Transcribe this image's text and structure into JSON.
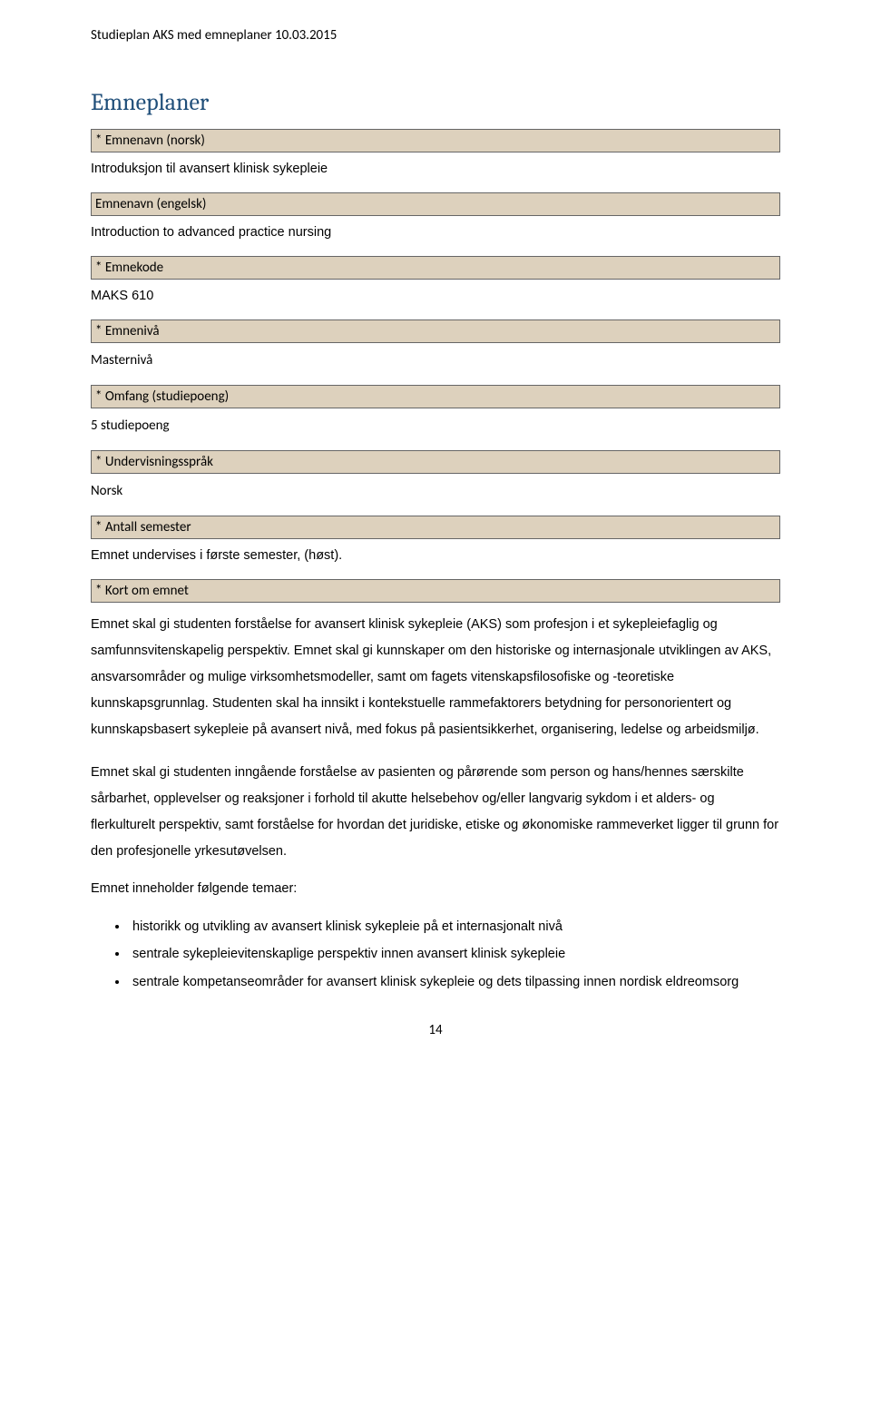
{
  "header": {
    "text": "Studieplan AKS med emneplaner 10.03.2015"
  },
  "title": {
    "text": "Emneplaner"
  },
  "fields": {
    "emnenavn_norsk": {
      "label": "* Emnenavn (norsk)",
      "value": "Introduksjon til avansert klinisk sykepleie"
    },
    "emnenavn_engelsk": {
      "label": "Emnenavn (engelsk)",
      "value": "Introduction to advanced practice nursing"
    },
    "emnekode": {
      "label": "* Emnekode",
      "value": "MAKS 610"
    },
    "emneniva": {
      "label": "* Emnenivå",
      "value": "Masternivå"
    },
    "omfang": {
      "label": "* Omfang (studiepoeng)",
      "value": "5 studiepoeng"
    },
    "undervisningssprak": {
      "label": "* Undervisningsspråk",
      "value": "Norsk"
    },
    "antall_semester": {
      "label": "* Antall semester",
      "value": "Emnet undervises i første semester, (høst)."
    },
    "kort_om_emnet": {
      "label": "* Kort om emnet"
    }
  },
  "body": {
    "p1": "Emnet skal gi studenten forståelse for avansert klinisk sykepleie (AKS) som profesjon i et sykepleiefaglig og samfunnsvitenskapelig perspektiv. Emnet skal gi kunnskaper om den historiske og internasjonale utviklingen av AKS, ansvarsområder og mulige virksomhetsmodeller, samt om fagets vitenskapsfilosofiske og -teoretiske kunnskapsgrunnlag. Studenten skal ha innsikt i kontekstuelle rammefaktorers betydning for personorientert og kunnskapsbasert sykepleie på avansert nivå, med fokus på pasientsikkerhet, organisering, ledelse og arbeidsmiljø.",
    "p2": "Emnet skal gi studenten inngående forståelse av pasienten og pårørende som person og hans/hennes særskilte sårbarhet, opplevelser og reaksjoner i forhold til akutte helsebehov og/eller langvarig sykdom i et alders- og flerkulturelt perspektiv, samt forståelse for hvordan det juridiske, etiske og økonomiske rammeverket ligger til grunn for den profesjonelle yrkesutøvelsen.",
    "intro": "Emnet inneholder følgende temaer:",
    "bullets": {
      "b1": "historikk og utvikling av avansert klinisk sykepleie på et internasjonalt nivå",
      "b2": "sentrale sykepleievitenskaplige perspektiv innen avansert klinisk sykepleie",
      "b3": "sentrale kompetanseområder for avansert klinisk sykepleie og dets tilpassing innen nordisk eldreomsorg"
    }
  },
  "footer": {
    "pageNum": "14"
  },
  "colors": {
    "bar_bg": "#ddd1bd",
    "bar_border": "#666666",
    "heading": "#1f4e79",
    "text": "#000000",
    "background": "#ffffff"
  }
}
